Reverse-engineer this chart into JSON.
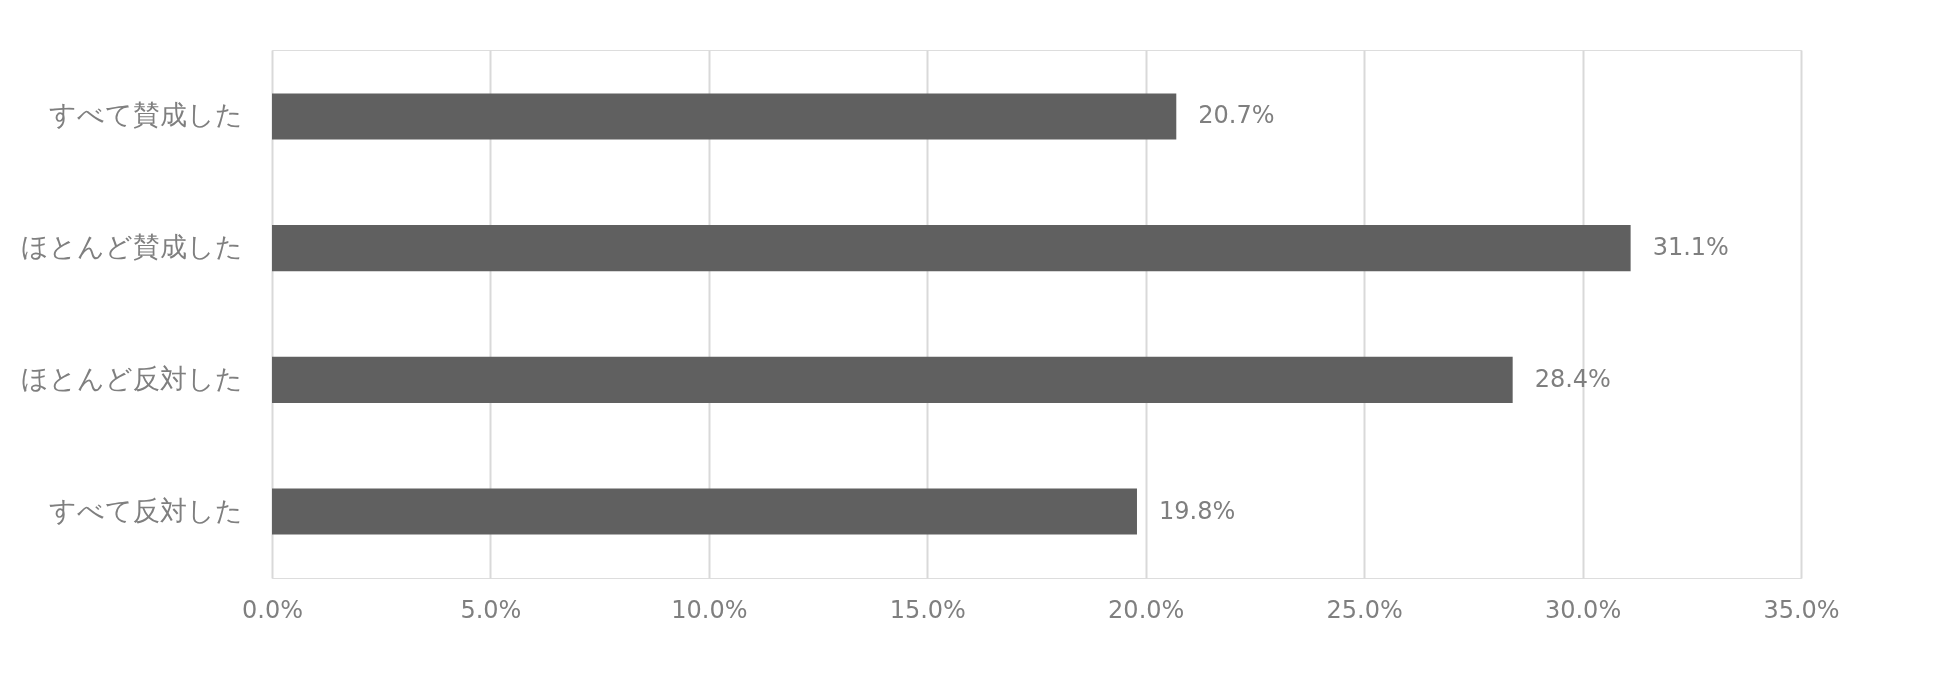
{
  "chart_data": {
    "type": "bar",
    "orientation": "horizontal",
    "categories": [
      "すべて賛成した",
      "ほとんど賛成した",
      "ほとんど反対した",
      "すべて反対した"
    ],
    "values": [
      20.7,
      31.1,
      28.4,
      19.8
    ],
    "value_labels": [
      "20.7%",
      "31.1%",
      "28.4%",
      "19.8%"
    ],
    "color": "#606060",
    "xlim": [
      0,
      35
    ],
    "xticks": [
      {
        "value": 0,
        "label": "0.0%"
      },
      {
        "value": 5,
        "label": "5.0%"
      },
      {
        "value": 10,
        "label": "10.0%"
      },
      {
        "value": 15,
        "label": "15.0%"
      },
      {
        "value": 20,
        "label": "20.0%"
      },
      {
        "value": 25,
        "label": "25.0%"
      },
      {
        "value": 30,
        "label": "30.0%"
      },
      {
        "value": 35,
        "label": "35.0%"
      }
    ],
    "grid": "x"
  }
}
